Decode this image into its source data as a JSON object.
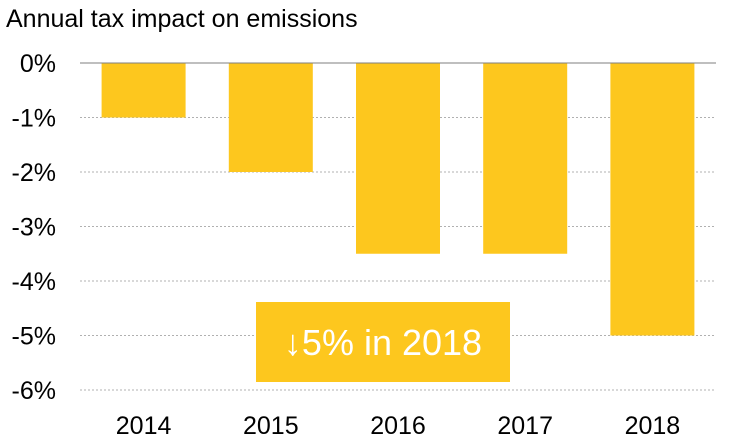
{
  "chart_data": {
    "type": "bar",
    "title": "Annual tax impact on emissions",
    "xlabel": "",
    "ylabel": "",
    "categories": [
      "2014",
      "2015",
      "2016",
      "2017",
      "2018"
    ],
    "values": [
      -1,
      -2,
      -3.5,
      -3.5,
      -5
    ],
    "unit": "%",
    "ylim": [
      -6,
      0
    ],
    "yticks": [
      0,
      -1,
      -2,
      -3,
      -4,
      -5,
      -6
    ],
    "ytick_labels": [
      "0%",
      "-1%",
      "-2%",
      "-3%",
      "-4%",
      "-5%",
      "-6%"
    ],
    "grid": true,
    "grid_style": "dotted",
    "legend": "none",
    "annotation": {
      "arrow": "↓",
      "text": "5% in 2018"
    },
    "colors": {
      "bar": "#fdc71e",
      "callout": "#fdc71e",
      "grid": "#b0b0b0",
      "axis": "#7f7f7f"
    }
  }
}
